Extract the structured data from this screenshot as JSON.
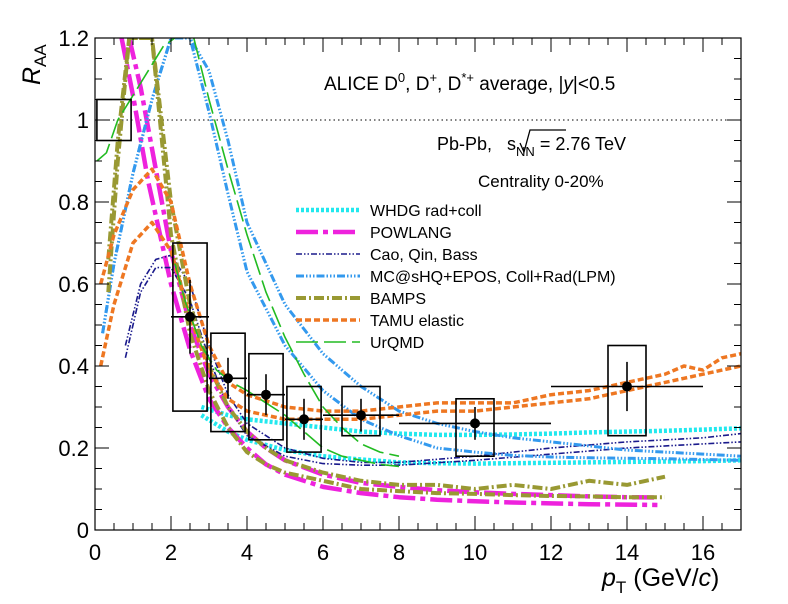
{
  "chart_data": {
    "type": "scatter",
    "title_line1_base": "ALICE D",
    "title_line1_sup1": "0",
    "title_line1_mid1": ", D",
    "title_line1_sup2": "+",
    "title_line1_mid2": ", D",
    "title_line1_sup3": "*+",
    "title_line1_tail": " average, |",
    "title_line1_y": "y",
    "title_line1_end": "|<0.5",
    "system_prefix": "Pb-Pb, ",
    "system_s": "s",
    "system_nn": "NN",
    "system_value": " = 2.76 TeV",
    "centrality": "Centrality 0-20%",
    "xlabel_p": "p",
    "xlabel_t": "T",
    "xlabel_unit": " (GeV/",
    "xlabel_c": "c",
    "xlabel_close": ")",
    "ylabel_r": "R",
    "ylabel_aa": "AA",
    "xlim": [
      0,
      17
    ],
    "ylim": [
      0,
      1.2
    ],
    "x_tick_labels": [
      "0",
      "2",
      "4",
      "6",
      "8",
      "10",
      "12",
      "14",
      "16"
    ],
    "y_tick_labels": [
      "0",
      "0.2",
      "0.4",
      "0.6",
      "0.8",
      "1",
      "1.2"
    ],
    "reference_line": 1.0,
    "data": [
      {
        "x": 2.5,
        "y": 0.52,
        "xlo": 2,
        "xhi": 3,
        "stat": 0.09,
        "sys_lo": 0.29,
        "sys_hi": 0.7
      },
      {
        "x": 3.5,
        "y": 0.37,
        "xlo": 3,
        "xhi": 4,
        "stat": 0.05,
        "sys_lo": 0.24,
        "sys_hi": 0.48
      },
      {
        "x": 4.5,
        "y": 0.33,
        "xlo": 4,
        "xhi": 5,
        "stat": 0.05,
        "sys_lo": 0.22,
        "sys_hi": 0.43
      },
      {
        "x": 5.5,
        "y": 0.27,
        "xlo": 5,
        "xhi": 6,
        "stat": 0.05,
        "sys_lo": 0.19,
        "sys_hi": 0.35
      },
      {
        "x": 7.0,
        "y": 0.28,
        "xlo": 6,
        "xhi": 8,
        "stat": 0.04,
        "sys_lo": 0.23,
        "sys_hi": 0.35
      },
      {
        "x": 10.0,
        "y": 0.26,
        "xlo": 8,
        "xhi": 12,
        "stat": 0.04,
        "sys_lo": 0.18,
        "sys_hi": 0.32
      },
      {
        "x": 14.0,
        "y": 0.35,
        "xlo": 12,
        "xhi": 16,
        "stat": 0.06,
        "sys_lo": 0.23,
        "sys_hi": 0.45
      },
      {
        "x": 0.5,
        "y": null,
        "xlo": 0.5,
        "xhi": 0.5,
        "stat": 0,
        "sys_lo": 0.95,
        "sys_hi": 1.05
      }
    ],
    "series": [
      {
        "name": "WHDG rad+coll",
        "color": "#22e8ee",
        "dash": "3,2",
        "width": 4.5,
        "bands": [
          {
            "x": [
              2.8,
              3.5,
              4,
              5,
              6,
              7,
              8,
              9,
              10,
              11,
              12,
              13,
              14,
              15,
              16,
              17
            ],
            "y": [
              0.3,
              0.28,
              0.27,
              0.26,
              0.25,
              0.24,
              0.235,
              0.232,
              0.232,
              0.233,
              0.235,
              0.238,
              0.24,
              0.242,
              0.245,
              0.248
            ]
          },
          {
            "x": [
              2.8,
              3.5,
              4,
              5,
              6,
              7,
              8,
              9,
              10,
              11,
              12,
              13,
              14,
              15,
              16,
              17
            ],
            "y": [
              0.28,
              0.24,
              0.22,
              0.195,
              0.18,
              0.172,
              0.165,
              0.163,
              0.162,
              0.163,
              0.164,
              0.165,
              0.166,
              0.167,
              0.168,
              0.17
            ]
          }
        ]
      },
      {
        "name": "POWLANG",
        "color": "#ee22dd",
        "dash": "22,5,5,5",
        "width": 4.5,
        "bands": [
          {
            "x": [
              0.9,
              1.2,
              1.6,
              2,
              2.5,
              3,
              3.5,
              4,
              4.5,
              5,
              6,
              7,
              8,
              9,
              10,
              11,
              12,
              13,
              14,
              14.8
            ],
            "y": [
              1.2,
              1.08,
              0.88,
              0.68,
              0.5,
              0.38,
              0.3,
              0.24,
              0.2,
              0.17,
              0.135,
              0.115,
              0.105,
              0.097,
              0.092,
              0.088,
              0.085,
              0.082,
              0.08,
              0.079
            ]
          },
          {
            "x": [
              0.7,
              1.0,
              1.4,
              2,
              2.5,
              3,
              3.5,
              4,
              4.5,
              5,
              6,
              7,
              8,
              9,
              10,
              11,
              12,
              13,
              14,
              14.8
            ],
            "y": [
              1.2,
              1.06,
              0.85,
              0.6,
              0.44,
              0.32,
              0.25,
              0.2,
              0.16,
              0.135,
              0.105,
              0.09,
              0.08,
              0.074,
              0.07,
              0.067,
              0.065,
              0.063,
              0.062,
              0.061
            ]
          }
        ]
      },
      {
        "name": "Cao, Qin, Bass",
        "color": "#1a1a8c",
        "dash": "6,2,1.5,2,1.5,2",
        "width": 1.6,
        "bands": [
          {
            "x": [
              0.8,
              1.2,
              1.6,
              2,
              2.5,
              3,
              3.5,
              4,
              5,
              6,
              7,
              8,
              10,
              12,
              14,
              16,
              17
            ],
            "y": [
              0.45,
              0.6,
              0.66,
              0.67,
              0.6,
              0.45,
              0.33,
              0.26,
              0.2,
              0.175,
              0.165,
              0.165,
              0.18,
              0.2,
              0.215,
              0.225,
              0.235
            ]
          },
          {
            "x": [
              0.8,
              1.2,
              1.6,
              2,
              2.5,
              3,
              3.5,
              4,
              5,
              6,
              7,
              8,
              10,
              12,
              14,
              16,
              17
            ],
            "y": [
              0.42,
              0.58,
              0.64,
              0.64,
              0.56,
              0.42,
              0.3,
              0.23,
              0.18,
              0.162,
              0.158,
              0.158,
              0.17,
              0.185,
              0.2,
              0.21,
              0.215
            ]
          }
        ]
      },
      {
        "name": "MC@sHQ+EPOS, Coll+Rad(LPM)",
        "color": "#3399ee",
        "dash": "8,2,1.5,2,1.5,2,1.5,2",
        "width": 3,
        "bands": [
          {
            "x": [
              0.2,
              0.5,
              1,
              1.5,
              2,
              2.5,
              3,
              3.5,
              4,
              5,
              6,
              7,
              8,
              9,
              10,
              11,
              12,
              13,
              14,
              15,
              16,
              17
            ],
            "y": [
              0.48,
              0.65,
              0.87,
              1.05,
              1.2,
              1.2,
              1.12,
              0.95,
              0.75,
              0.55,
              0.43,
              0.35,
              0.29,
              0.26,
              0.24,
              0.225,
              0.215,
              0.205,
              0.195,
              0.19,
              0.185,
              0.18
            ]
          },
          {
            "x": [
              0.2,
              0.5,
              1,
              1.5,
              2,
              2.5,
              3,
              3.5,
              4,
              5,
              6,
              7,
              8,
              9,
              10,
              11,
              12,
              13,
              14,
              15,
              16,
              17
            ],
            "y": [
              0.48,
              0.65,
              0.87,
              1.05,
              1.2,
              1.2,
              1.02,
              0.82,
              0.63,
              0.45,
              0.34,
              0.27,
              0.23,
              0.2,
              0.19,
              0.182,
              0.178,
              0.176,
              0.175,
              0.174,
              0.172,
              0.17
            ]
          }
        ]
      },
      {
        "name": "BAMPS",
        "color": "#999933",
        "dash": "10,3,2,3",
        "width": 4,
        "bands": [
          {
            "x": [
              0.35,
              0.6,
              0.9,
              1.2,
              1.5,
              2,
              2.5,
              3,
              3.5,
              4,
              4.5,
              5,
              6,
              7,
              8,
              9,
              10,
              11,
              12,
              13,
              14,
              15
            ],
            "y": [
              0.66,
              0.95,
              1.2,
              1.2,
              1.2,
              0.8,
              0.55,
              0.4,
              0.3,
              0.24,
              0.2,
              0.17,
              0.14,
              0.12,
              0.11,
              0.11,
              0.1,
              0.11,
              0.1,
              0.12,
              0.11,
              0.13
            ]
          },
          {
            "x": [
              0.35,
              0.6,
              0.9,
              1.2,
              1.5,
              2,
              2.5,
              3,
              3.5,
              4,
              4.5,
              5,
              6,
              7,
              8,
              9,
              10,
              11,
              12,
              13,
              14,
              15
            ],
            "y": [
              0.58,
              0.9,
              1.2,
              1.2,
              1.2,
              0.72,
              0.48,
              0.34,
              0.25,
              0.19,
              0.16,
              0.14,
              0.12,
              0.1,
              0.095,
              0.09,
              0.088,
              0.085,
              0.083,
              0.082,
              0.08,
              0.08
            ]
          }
        ]
      },
      {
        "name": "TAMU elastic",
        "color": "#ee7722",
        "dash": "6,3",
        "width": 3.5,
        "bands": [
          {
            "x": [
              0.15,
              0.5,
              1,
              1.5,
              2,
              2.5,
              3,
              3.5,
              4,
              5,
              6,
              7,
              8,
              9,
              10,
              11,
              12,
              13,
              14,
              15,
              15.5,
              16,
              16.5,
              17
            ],
            "y": [
              0.6,
              0.72,
              0.83,
              0.88,
              0.8,
              0.6,
              0.45,
              0.36,
              0.33,
              0.3,
              0.29,
              0.29,
              0.3,
              0.31,
              0.31,
              0.31,
              0.33,
              0.34,
              0.36,
              0.38,
              0.4,
              0.39,
              0.42,
              0.43
            ]
          },
          {
            "x": [
              0.15,
              0.5,
              1,
              1.5,
              2,
              2.5,
              3,
              3.5,
              4,
              5,
              6,
              7,
              8,
              9,
              10,
              11,
              12,
              13,
              14,
              15,
              15.5,
              16,
              16.5,
              17
            ],
            "y": [
              0.4,
              0.55,
              0.7,
              0.75,
              0.68,
              0.52,
              0.39,
              0.32,
              0.29,
              0.27,
              0.27,
              0.27,
              0.28,
              0.29,
              0.29,
              0.3,
              0.31,
              0.32,
              0.34,
              0.36,
              0.37,
              0.38,
              0.39,
              0.4
            ]
          }
        ]
      },
      {
        "name": "UrQMD",
        "color": "#22bb22",
        "dash": "22,6",
        "width": 1.6,
        "bands": [
          {
            "x": [
              0.05,
              0.3,
              0.6,
              1,
              1.4,
              1.8,
              2.1
            ],
            "y": [
              0.9,
              0.92,
              1.0,
              1.06,
              1.12,
              1.18,
              1.2
            ]
          },
          {
            "x": [
              2.6,
              3,
              3.5,
              4,
              4.5,
              5,
              5.5,
              6,
              6.5,
              7,
              7.5,
              8
            ],
            "y": [
              1.2,
              1.05,
              0.88,
              0.72,
              0.58,
              0.47,
              0.38,
              0.3,
              0.25,
              0.21,
              0.19,
              0.18
            ]
          },
          {
            "x": [
              2.1,
              2.4,
              2.8,
              3.2,
              3.6,
              4,
              4.5,
              5,
              5.5,
              6,
              6.5,
              7,
              7.5,
              8
            ],
            "y": [
              0.65,
              0.55,
              0.45,
              0.39,
              0.36,
              0.34,
              0.31,
              0.28,
              0.24,
              0.2,
              0.18,
              0.17,
              0.16,
              0.155
            ]
          }
        ]
      }
    ]
  }
}
